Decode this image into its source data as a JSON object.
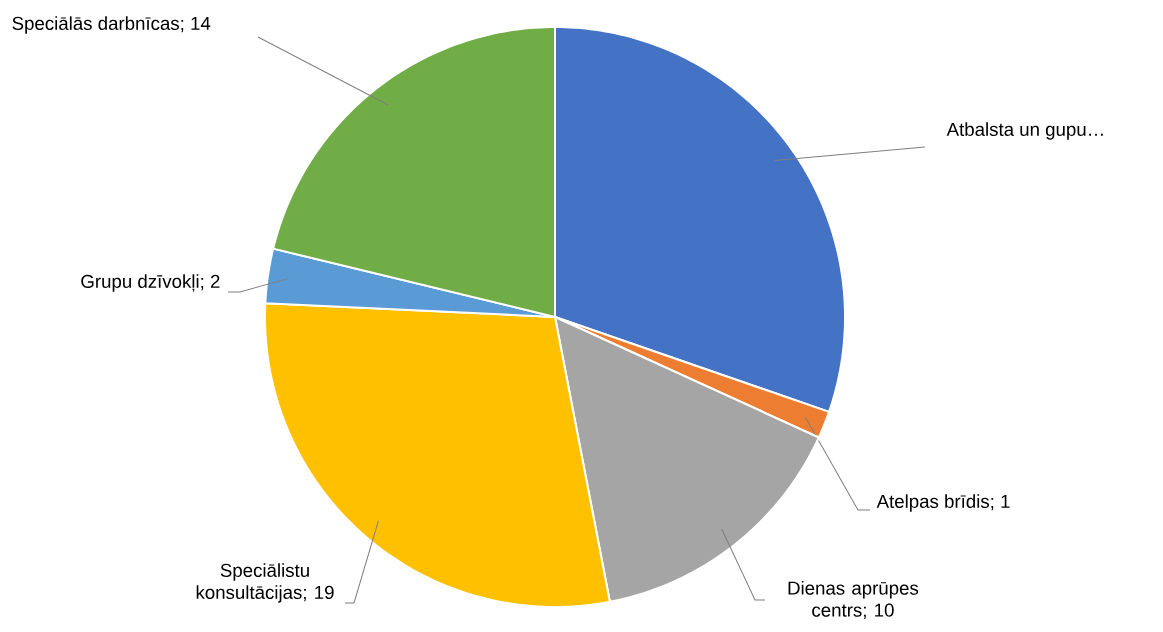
{
  "chart_data": {
    "type": "pie",
    "categories": [
      "Atbalsta un gupu…",
      "Atelpas brīdis; 1",
      "Dienas aprūpes centrs; 10",
      "Speciālistu konsultācijas; 19",
      "Grupu dzīvokļi; 2",
      "Speciālās darbnīcas; 14"
    ],
    "values": [
      20,
      1,
      10,
      19,
      2,
      14
    ],
    "colors": [
      "#4472c4",
      "#ed7d31",
      "#a5a5a5",
      "#ffc000",
      "#5b9bd5",
      "#70ad47"
    ]
  }
}
